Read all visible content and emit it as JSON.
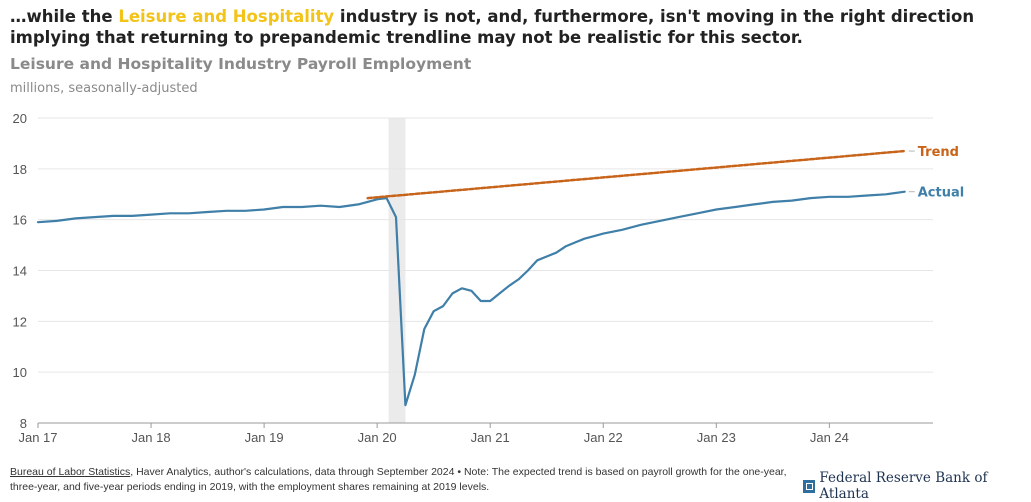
{
  "headline": {
    "before": "…while the ",
    "highlight": "Leisure and Hospitality",
    "after": " industry is not, and, furthermore, isn't moving in the right direction implying that returning to prepandemic trendline may not be realistic for this sector.",
    "highlight_color": "#f2c318"
  },
  "colors": {
    "actual": "#3f7fa8",
    "trend": "#c8641a",
    "recession_band": "#ebebeb",
    "grid": "#e6e6e6"
  },
  "footer": {
    "source_link": "Bureau of Labor Statistics",
    "text": ", Haver Analytics, author's calculations, data through September 2024 • Note: The expected trend is based on payroll growth for the one-year, three-year, and five-year periods ending in 2019, with the employment shares remaining at 2019 levels."
  },
  "logo": {
    "text": "Federal Reserve Bank of Atlanta",
    "icon": "fed-logo-icon"
  },
  "chart_data": {
    "type": "line",
    "title": "Leisure and Hospitality Industry Payroll Employment",
    "subtitle": "millions, seasonally-adjusted",
    "ylim": [
      8,
      20
    ],
    "yticks": [
      8,
      10,
      12,
      14,
      16,
      18,
      20
    ],
    "xlim": [
      "2017-01",
      "2024-12"
    ],
    "xticks": [
      "Jan 17",
      "Jan 18",
      "Jan 19",
      "Jan 20",
      "Jan 21",
      "Jan 22",
      "Jan 23",
      "Jan 24"
    ],
    "grid": true,
    "shaded_period": [
      "2020-02",
      "2020-04"
    ],
    "series": [
      {
        "name": "Actual",
        "points": [
          [
            "2017-01",
            15.9
          ],
          [
            "2017-03",
            15.95
          ],
          [
            "2017-05",
            16.05
          ],
          [
            "2017-07",
            16.1
          ],
          [
            "2017-09",
            16.15
          ],
          [
            "2017-11",
            16.15
          ],
          [
            "2018-01",
            16.2
          ],
          [
            "2018-03",
            16.25
          ],
          [
            "2018-05",
            16.25
          ],
          [
            "2018-07",
            16.3
          ],
          [
            "2018-09",
            16.35
          ],
          [
            "2018-11",
            16.35
          ],
          [
            "2019-01",
            16.4
          ],
          [
            "2019-03",
            16.5
          ],
          [
            "2019-05",
            16.5
          ],
          [
            "2019-07",
            16.55
          ],
          [
            "2019-09",
            16.5
          ],
          [
            "2019-11",
            16.6
          ],
          [
            "2020-01",
            16.8
          ],
          [
            "2020-02",
            16.85
          ],
          [
            "2020-03",
            16.1
          ],
          [
            "2020-04",
            8.7
          ],
          [
            "2020-05",
            9.9
          ],
          [
            "2020-06",
            11.7
          ],
          [
            "2020-07",
            12.4
          ],
          [
            "2020-08",
            12.6
          ],
          [
            "2020-09",
            13.1
          ],
          [
            "2020-10",
            13.3
          ],
          [
            "2020-11",
            13.2
          ],
          [
            "2020-12",
            12.8
          ],
          [
            "2021-01",
            12.8
          ],
          [
            "2021-02",
            13.1
          ],
          [
            "2021-03",
            13.4
          ],
          [
            "2021-04",
            13.65
          ],
          [
            "2021-05",
            14.0
          ],
          [
            "2021-06",
            14.4
          ],
          [
            "2021-07",
            14.55
          ],
          [
            "2021-08",
            14.7
          ],
          [
            "2021-09",
            14.95
          ],
          [
            "2021-10",
            15.1
          ],
          [
            "2021-11",
            15.25
          ],
          [
            "2021-12",
            15.35
          ],
          [
            "2022-01",
            15.45
          ],
          [
            "2022-03",
            15.6
          ],
          [
            "2022-05",
            15.8
          ],
          [
            "2022-07",
            15.95
          ],
          [
            "2022-09",
            16.1
          ],
          [
            "2022-11",
            16.25
          ],
          [
            "2023-01",
            16.4
          ],
          [
            "2023-03",
            16.5
          ],
          [
            "2023-05",
            16.6
          ],
          [
            "2023-07",
            16.7
          ],
          [
            "2023-09",
            16.75
          ],
          [
            "2023-11",
            16.85
          ],
          [
            "2024-01",
            16.9
          ],
          [
            "2024-03",
            16.9
          ],
          [
            "2024-05",
            16.95
          ],
          [
            "2024-07",
            17.0
          ],
          [
            "2024-09",
            17.1
          ]
        ]
      },
      {
        "name": "Trend",
        "style": "dashed",
        "points": [
          [
            "2019-12",
            16.85
          ],
          [
            "2024-09",
            18.7
          ]
        ]
      }
    ]
  }
}
